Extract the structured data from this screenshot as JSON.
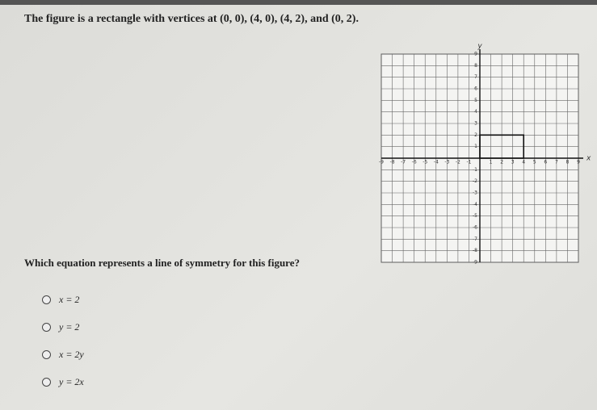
{
  "question": {
    "prompt": "The figure is a rectangle with vertices at (0, 0), (4, 0), (4, 2), and (0, 2).",
    "graph": {
      "x_label": "x",
      "y_label": "y",
      "x_ticks": [
        -9,
        -8,
        -7,
        -6,
        -5,
        -4,
        -3,
        -2,
        -1,
        1,
        2,
        3,
        4,
        5,
        6,
        7,
        8,
        9
      ],
      "y_ticks": [
        -9,
        -8,
        -7,
        -6,
        -5,
        -4,
        -3,
        -2,
        -1,
        1,
        2,
        3,
        4,
        5,
        6,
        7,
        8,
        9
      ],
      "rectangle": [
        [
          0,
          0
        ],
        [
          4,
          0
        ],
        [
          4,
          2
        ],
        [
          0,
          2
        ]
      ]
    },
    "ask": "Which equation represents a line of symmetry for this figure?",
    "options": [
      "x = 2",
      "y = 2",
      "x = 2y",
      "y = 2x"
    ]
  }
}
